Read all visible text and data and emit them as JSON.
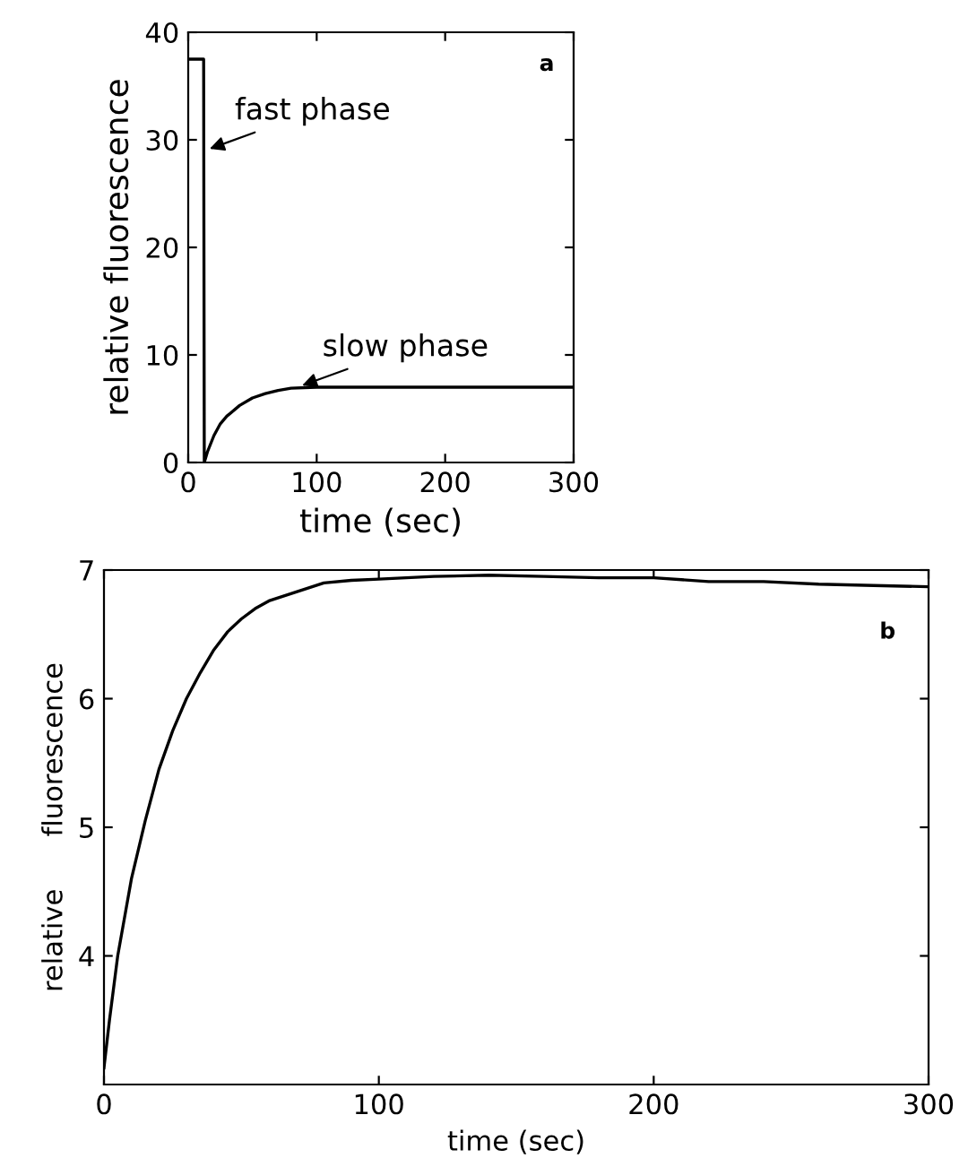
{
  "chart_data": [
    {
      "type": "line",
      "xlabel": "time (sec)",
      "ylabel": "relative fluorescence",
      "xlim": [
        0,
        300
      ],
      "ylim": [
        0,
        40
      ],
      "xticks": [
        0,
        100,
        200,
        300
      ],
      "yticks": [
        0,
        10,
        20,
        30,
        40
      ],
      "grid": false,
      "legend": false,
      "annotations": [
        "a",
        {
          "text": "fast phase",
          "x": 13,
          "y": 29
        },
        {
          "text": "slow phase",
          "x": 85,
          "y": 7
        }
      ],
      "series": [
        {
          "color": "#000000",
          "x": [
            0,
            10,
            12,
            12.5,
            15,
            20,
            25,
            30,
            40,
            50,
            60,
            70,
            80,
            100,
            150,
            200,
            250,
            300
          ],
          "values": [
            37.5,
            37.5,
            37.5,
            0,
            1,
            2.5,
            3.6,
            4.3,
            5.3,
            6.0,
            6.4,
            6.7,
            6.9,
            7.0,
            7.0,
            7.0,
            7.0,
            7.0
          ]
        }
      ]
    },
    {
      "type": "line",
      "xlabel": "time (sec)",
      "ylabel": "relative      fluorescence",
      "xlim": [
        0,
        300
      ],
      "ylim": [
        3.0,
        7.0
      ],
      "xticks": [
        0,
        100,
        200,
        300
      ],
      "yticks": [
        4,
        5,
        6,
        7
      ],
      "grid": false,
      "legend": false,
      "annotations": [
        "b"
      ],
      "series": [
        {
          "color": "#000000",
          "x": [
            0,
            2,
            5,
            10,
            15,
            20,
            25,
            30,
            35,
            40,
            45,
            50,
            55,
            60,
            70,
            80,
            90,
            100,
            120,
            140,
            160,
            180,
            200,
            220,
            240,
            260,
            280,
            300
          ],
          "values": [
            3.13,
            3.5,
            4.0,
            4.6,
            5.05,
            5.45,
            5.75,
            6.0,
            6.2,
            6.38,
            6.52,
            6.62,
            6.7,
            6.76,
            6.83,
            6.9,
            6.92,
            6.93,
            6.95,
            6.96,
            6.95,
            6.94,
            6.94,
            6.91,
            6.91,
            6.89,
            6.88,
            6.87
          ]
        }
      ]
    }
  ]
}
